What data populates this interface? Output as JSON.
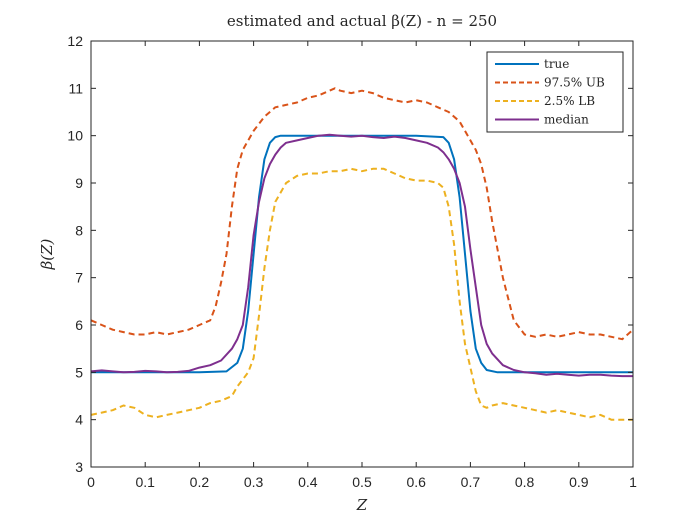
{
  "chart_data": {
    "type": "line",
    "title": "estimated and actual β(Z) - n = 250",
    "xlabel": "Z",
    "ylabel": "β(Z)",
    "xlim": [
      0,
      1
    ],
    "ylim": [
      3,
      12
    ],
    "xticks": [
      0,
      0.1,
      0.2,
      0.3,
      0.4,
      0.5,
      0.6,
      0.7,
      0.8,
      0.9,
      1
    ],
    "xtick_labels": [
      "0",
      "0.1",
      "0.2",
      "0.3",
      "0.4",
      "0.5",
      "0.6",
      "0.7",
      "0.8",
      "0.9",
      "1"
    ],
    "yticks": [
      3,
      4,
      5,
      6,
      7,
      8,
      9,
      10,
      11,
      12
    ],
    "ytick_labels": [
      "3",
      "4",
      "5",
      "6",
      "7",
      "8",
      "9",
      "10",
      "11",
      "12"
    ],
    "grid": false,
    "legend_position": "top-right",
    "series": [
      {
        "name": "true",
        "color": "#0072BD",
        "dash": "solid",
        "x": [
          0,
          0.1,
          0.2,
          0.25,
          0.27,
          0.28,
          0.29,
          0.3,
          0.31,
          0.32,
          0.33,
          0.34,
          0.35,
          0.4,
          0.5,
          0.6,
          0.65,
          0.66,
          0.67,
          0.68,
          0.69,
          0.7,
          0.71,
          0.72,
          0.73,
          0.75,
          0.8,
          0.9,
          1
        ],
        "values": [
          5,
          5,
          5,
          5.02,
          5.2,
          5.5,
          6.3,
          7.5,
          8.7,
          9.5,
          9.85,
          9.97,
          10,
          10,
          10,
          10,
          9.97,
          9.85,
          9.5,
          8.7,
          7.5,
          6.3,
          5.5,
          5.2,
          5.05,
          5,
          5,
          5,
          5
        ]
      },
      {
        "name": "97.5% UB",
        "color": "#D95319",
        "dash": "dashed",
        "x": [
          0,
          0.02,
          0.04,
          0.06,
          0.08,
          0.1,
          0.12,
          0.14,
          0.16,
          0.18,
          0.2,
          0.22,
          0.23,
          0.24,
          0.25,
          0.26,
          0.27,
          0.28,
          0.29,
          0.3,
          0.32,
          0.34,
          0.36,
          0.38,
          0.4,
          0.42,
          0.44,
          0.45,
          0.46,
          0.48,
          0.5,
          0.52,
          0.54,
          0.56,
          0.58,
          0.6,
          0.62,
          0.64,
          0.66,
          0.68,
          0.69,
          0.7,
          0.71,
          0.72,
          0.73,
          0.74,
          0.76,
          0.78,
          0.8,
          0.82,
          0.84,
          0.86,
          0.88,
          0.9,
          0.92,
          0.94,
          0.96,
          0.98,
          1
        ],
        "values": [
          6.1,
          6.0,
          5.9,
          5.85,
          5.8,
          5.8,
          5.85,
          5.8,
          5.85,
          5.9,
          6.0,
          6.1,
          6.4,
          6.9,
          7.5,
          8.5,
          9.3,
          9.7,
          9.9,
          10.1,
          10.4,
          10.6,
          10.65,
          10.7,
          10.8,
          10.85,
          10.95,
          11.0,
          10.95,
          10.9,
          10.95,
          10.9,
          10.8,
          10.75,
          10.7,
          10.75,
          10.7,
          10.6,
          10.5,
          10.3,
          10.1,
          9.9,
          9.7,
          9.4,
          8.9,
          8.2,
          7.0,
          6.1,
          5.8,
          5.75,
          5.8,
          5.75,
          5.8,
          5.85,
          5.8,
          5.8,
          5.75,
          5.7,
          5.9
        ]
      },
      {
        "name": "2.5% LB",
        "color": "#EDB120",
        "dash": "dashed",
        "x": [
          0,
          0.02,
          0.04,
          0.06,
          0.08,
          0.1,
          0.12,
          0.14,
          0.16,
          0.18,
          0.2,
          0.22,
          0.24,
          0.26,
          0.27,
          0.28,
          0.29,
          0.3,
          0.31,
          0.32,
          0.33,
          0.34,
          0.36,
          0.38,
          0.4,
          0.42,
          0.44,
          0.46,
          0.48,
          0.5,
          0.52,
          0.54,
          0.56,
          0.58,
          0.6,
          0.62,
          0.64,
          0.65,
          0.66,
          0.67,
          0.68,
          0.69,
          0.7,
          0.71,
          0.72,
          0.73,
          0.74,
          0.76,
          0.78,
          0.8,
          0.82,
          0.84,
          0.86,
          0.88,
          0.9,
          0.92,
          0.94,
          0.96,
          0.98,
          1
        ],
        "values": [
          4.1,
          4.15,
          4.2,
          4.3,
          4.25,
          4.1,
          4.05,
          4.1,
          4.15,
          4.2,
          4.25,
          4.35,
          4.4,
          4.5,
          4.7,
          4.85,
          5.0,
          5.3,
          6.2,
          7.2,
          8.0,
          8.6,
          9.0,
          9.15,
          9.2,
          9.2,
          9.25,
          9.25,
          9.3,
          9.25,
          9.3,
          9.3,
          9.2,
          9.1,
          9.05,
          9.05,
          9.0,
          8.9,
          8.5,
          7.7,
          6.5,
          5.6,
          5.1,
          4.6,
          4.3,
          4.25,
          4.3,
          4.35,
          4.3,
          4.25,
          4.2,
          4.15,
          4.2,
          4.15,
          4.1,
          4.05,
          4.1,
          4.0,
          4.0,
          4.0
        ]
      },
      {
        "name": "median",
        "color": "#7E2F8E",
        "dash": "solid",
        "x": [
          0,
          0.02,
          0.04,
          0.06,
          0.08,
          0.1,
          0.12,
          0.14,
          0.16,
          0.18,
          0.2,
          0.22,
          0.24,
          0.26,
          0.27,
          0.28,
          0.29,
          0.3,
          0.31,
          0.32,
          0.33,
          0.34,
          0.35,
          0.36,
          0.38,
          0.4,
          0.42,
          0.44,
          0.46,
          0.48,
          0.5,
          0.52,
          0.54,
          0.56,
          0.58,
          0.6,
          0.62,
          0.64,
          0.65,
          0.66,
          0.67,
          0.68,
          0.69,
          0.7,
          0.71,
          0.72,
          0.73,
          0.74,
          0.76,
          0.78,
          0.8,
          0.82,
          0.84,
          0.86,
          0.88,
          0.9,
          0.92,
          0.94,
          0.96,
          0.98,
          1
        ],
        "values": [
          5.02,
          5.04,
          5.02,
          5.0,
          5.01,
          5.03,
          5.02,
          5.0,
          5.01,
          5.03,
          5.1,
          5.15,
          5.25,
          5.5,
          5.7,
          6.0,
          6.8,
          7.9,
          8.6,
          9.1,
          9.4,
          9.6,
          9.75,
          9.85,
          9.9,
          9.95,
          10.0,
          10.02,
          10.0,
          9.98,
          10.0,
          9.97,
          9.95,
          9.98,
          9.95,
          9.9,
          9.85,
          9.75,
          9.65,
          9.5,
          9.3,
          9.0,
          8.5,
          7.6,
          6.8,
          6.0,
          5.6,
          5.4,
          5.15,
          5.05,
          5.0,
          4.98,
          4.95,
          4.97,
          4.95,
          4.93,
          4.95,
          4.95,
          4.93,
          4.92,
          4.92
        ]
      }
    ]
  }
}
